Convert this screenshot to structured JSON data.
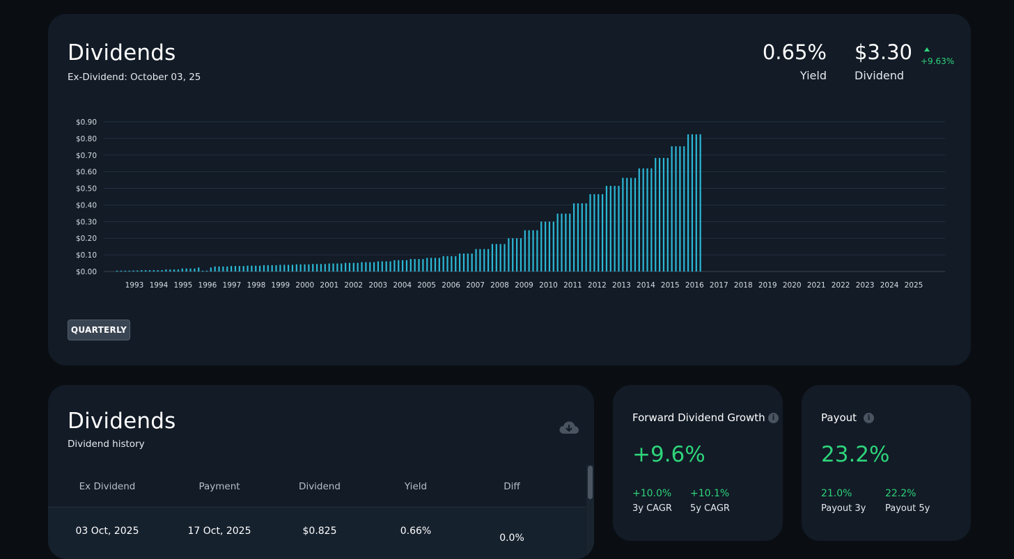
{
  "summary": {
    "title": "Dividends",
    "ex_dividend_text": "Ex-Dividend: October 03, 25",
    "yield_value": "0.65%",
    "yield_label": "Yield",
    "dividend_value": "$3.30",
    "dividend_label": "Dividend",
    "dividend_change": "+9.63%",
    "frequency_button": "QUARTERLY"
  },
  "colors": {
    "bar": "#2bb8d6",
    "positive": "#2ed47a",
    "card": "#121b26",
    "background": "#0a0e13"
  },
  "chart_data": {
    "type": "bar",
    "title": "",
    "xlabel": "",
    "ylabel": "",
    "ylim": [
      0,
      0.9
    ],
    "y_ticks": [
      "$0.00",
      "$0.10",
      "$0.20",
      "$0.30",
      "$0.40",
      "$0.50",
      "$0.60",
      "$0.70",
      "$0.80",
      "$0.90"
    ],
    "x_ticks": [
      "1993",
      "1994",
      "1995",
      "1996",
      "1997",
      "1998",
      "1999",
      "2000",
      "2001",
      "2002",
      "2003",
      "2004",
      "2005",
      "2006",
      "2007",
      "2008",
      "2009",
      "2010",
      "2011",
      "2012",
      "2013",
      "2014",
      "2015",
      "2016",
      "2017",
      "2018",
      "2019",
      "2020",
      "2021",
      "2022",
      "2023",
      "2024",
      "2025"
    ],
    "series": [
      {
        "name": "Quarterly Dividend",
        "values": [
          0.005,
          0.005,
          0.005,
          0.005,
          0.006,
          0.006,
          0.008,
          0.008,
          0.008,
          0.008,
          0.008,
          0.008,
          0.012,
          0.012,
          0.012,
          0.012,
          0.018,
          0.018,
          0.018,
          0.018,
          0.024,
          0.005,
          0.005,
          0.024,
          0.03,
          0.03,
          0.03,
          0.03,
          0.033,
          0.033,
          0.033,
          0.033,
          0.035,
          0.035,
          0.035,
          0.035,
          0.038,
          0.038,
          0.038,
          0.038,
          0.04,
          0.04,
          0.04,
          0.04,
          0.043,
          0.043,
          0.043,
          0.043,
          0.045,
          0.045,
          0.045,
          0.045,
          0.048,
          0.048,
          0.048,
          0.048,
          0.052,
          0.052,
          0.052,
          0.052,
          0.056,
          0.056,
          0.056,
          0.056,
          0.061,
          0.061,
          0.061,
          0.061,
          0.068,
          0.068,
          0.068,
          0.068,
          0.075,
          0.075,
          0.075,
          0.075,
          0.082,
          0.082,
          0.082,
          0.082,
          0.092,
          0.092,
          0.092,
          0.092,
          0.108,
          0.108,
          0.108,
          0.108,
          0.135,
          0.135,
          0.135,
          0.135,
          0.165,
          0.165,
          0.165,
          0.165,
          0.2,
          0.2,
          0.2,
          0.2,
          0.248,
          0.248,
          0.248,
          0.248,
          0.3,
          0.3,
          0.3,
          0.3,
          0.348,
          0.348,
          0.348,
          0.348,
          0.41,
          0.41,
          0.41,
          0.41,
          0.465,
          0.465,
          0.465,
          0.465,
          0.515,
          0.515,
          0.515,
          0.515,
          0.563,
          0.563,
          0.563,
          0.563,
          0.62,
          0.62,
          0.62,
          0.62,
          0.683,
          0.683,
          0.683,
          0.683,
          0.753,
          0.753,
          0.753,
          0.753,
          0.825,
          0.825,
          0.825,
          0.825
        ]
      }
    ]
  },
  "history": {
    "title": "Dividends",
    "subtitle": "Dividend history",
    "columns": [
      "Ex Dividend",
      "Payment",
      "Dividend",
      "Yield",
      "Diff"
    ],
    "rows": [
      {
        "ex": "03 Oct, 2025",
        "payment": "17 Oct, 2025",
        "dividend": "$0.825",
        "yield": "0.66%",
        "diff": "0.0%"
      }
    ]
  },
  "growth": {
    "title": "Forward Dividend Growth",
    "value": "+9.6%",
    "cagr3_value": "+10.0%",
    "cagr3_label": "3y CAGR",
    "cagr5_value": "+10.1%",
    "cagr5_label": "5y CAGR"
  },
  "payout": {
    "title": "Payout",
    "value": "23.2%",
    "p3_value": "21.0%",
    "p3_label": "Payout 3y",
    "p5_value": "22.2%",
    "p5_label": "Payout 5y"
  }
}
